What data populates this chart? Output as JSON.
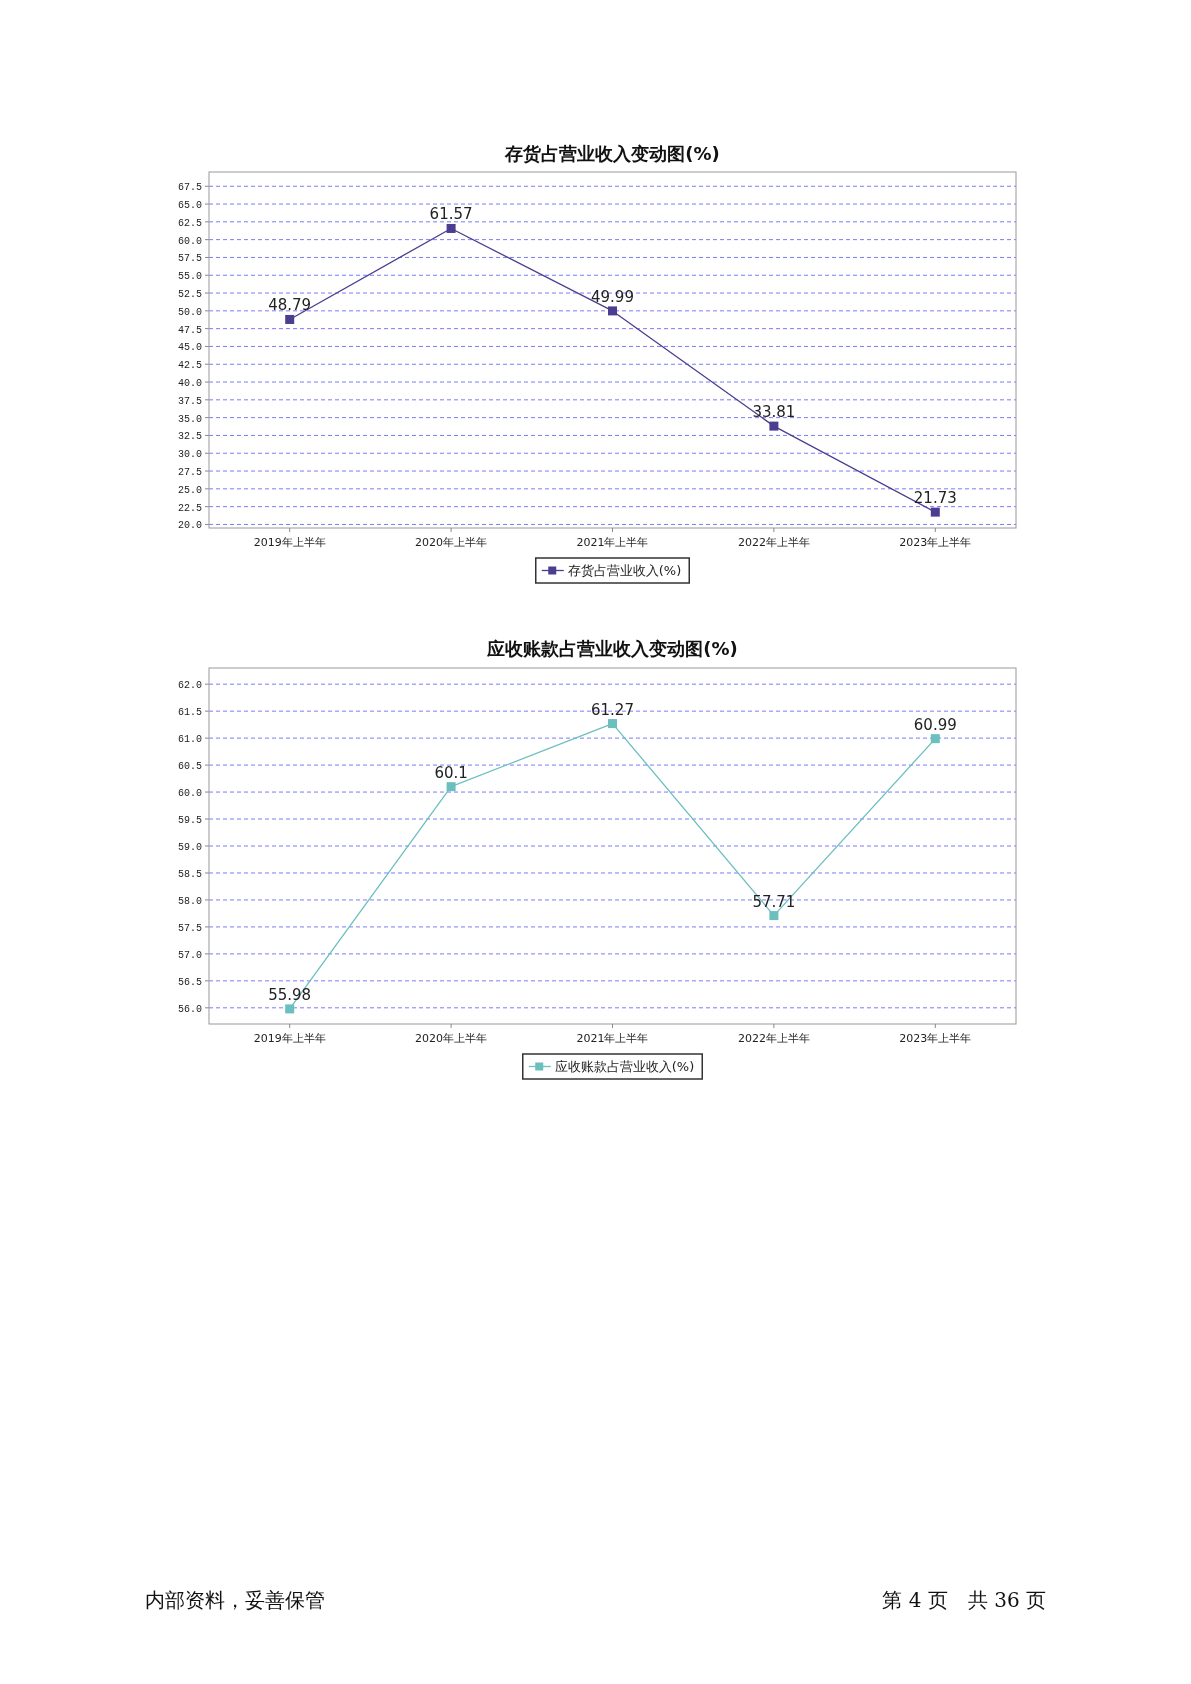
{
  "chart_data": [
    {
      "type": "line",
      "title": "存货占营业收入变动图(%)",
      "categories": [
        "2019年上半年",
        "2020年上半年",
        "2021年上半年",
        "2022年上半年",
        "2023年上半年"
      ],
      "series": [
        {
          "name": "存货占营业收入(%)",
          "color": "#4b3d8f",
          "values": [
            48.79,
            61.57,
            49.99,
            33.81,
            21.73
          ]
        }
      ],
      "ylim": [
        19.5,
        69.5
      ],
      "yticks": [
        {
          "value": 20,
          "label": "20.0"
        },
        {
          "value": 22.5,
          "label": "22.5"
        },
        {
          "value": 25,
          "label": "25.0"
        },
        {
          "value": 27.5,
          "label": "27.5"
        },
        {
          "value": 30,
          "label": "30.0"
        },
        {
          "value": 32.5,
          "label": "32.5"
        },
        {
          "value": 35,
          "label": "35.0"
        },
        {
          "value": 37.5,
          "label": "37.5"
        },
        {
          "value": 40,
          "label": "40.0"
        },
        {
          "value": 42.5,
          "label": "42.5"
        },
        {
          "value": 45,
          "label": "45.0"
        },
        {
          "value": 47.5,
          "label": "47.5"
        },
        {
          "value": 50,
          "label": "50.0"
        },
        {
          "value": 52.5,
          "label": "52.5"
        },
        {
          "value": 55,
          "label": "55.0"
        },
        {
          "value": 57.5,
          "label": "57.5"
        },
        {
          "value": 60,
          "label": "60.0"
        },
        {
          "value": 62.5,
          "label": "62.5"
        },
        {
          "value": 65,
          "label": "65.0"
        },
        {
          "value": 67.5,
          "label": "67.5"
        }
      ],
      "data_labels": true,
      "grid": "y",
      "legend": "bottom",
      "marker": "square",
      "line_style": "solid"
    },
    {
      "type": "line",
      "title": "应收账款占营业收入变动图(%)",
      "categories": [
        "2019年上半年",
        "2020年上半年",
        "2021年上半年",
        "2022年上半年",
        "2023年上半年"
      ],
      "series": [
        {
          "name": "应收账款占营业收入(%)",
          "color": "#6cbfbf",
          "values": [
            55.98,
            60.1,
            61.27,
            57.71,
            60.99
          ]
        }
      ],
      "ylim": [
        55.7,
        62.3
      ],
      "yticks": [
        {
          "value": 56,
          "label": "56.0"
        },
        {
          "value": 56.5,
          "label": "56.5"
        },
        {
          "value": 57,
          "label": "57.0"
        },
        {
          "value": 57.5,
          "label": "57.5"
        },
        {
          "value": 58,
          "label": "58.0"
        },
        {
          "value": 58.5,
          "label": "58.5"
        },
        {
          "value": 59,
          "label": "59.0"
        },
        {
          "value": 59.5,
          "label": "59.5"
        },
        {
          "value": 60,
          "label": "60.0"
        },
        {
          "value": 60.5,
          "label": "60.5"
        },
        {
          "value": 61,
          "label": "61.0"
        },
        {
          "value": 61.5,
          "label": "61.5"
        },
        {
          "value": 62,
          "label": "62.0"
        }
      ],
      "data_labels": true,
      "grid": "y",
      "legend": "bottom",
      "marker": "square",
      "line_style": "solid",
      "annotations": [
        "内部资料，妥善保管",
        "第 4 页　共 36 页"
      ]
    }
  ]
}
